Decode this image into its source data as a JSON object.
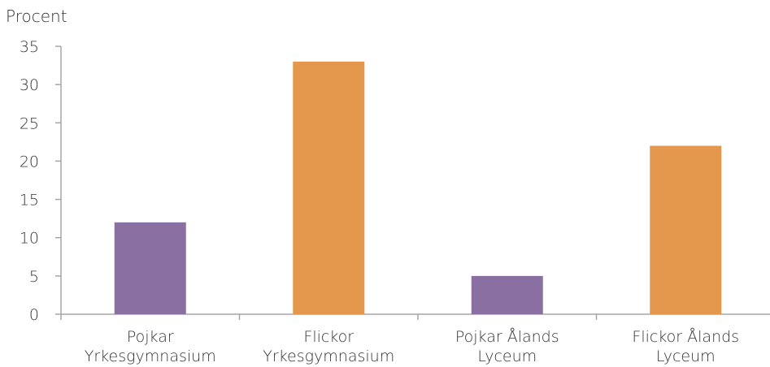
{
  "chart_data": {
    "type": "bar",
    "ylabel": "Procent",
    "categories": [
      [
        "Pojkar",
        "Yrkesgymnasium"
      ],
      [
        "Flickor",
        "Yrkesgymnasium"
      ],
      [
        "Pojkar Ålands",
        "Lyceum"
      ],
      [
        "Flickor Ålands",
        "Lyceum"
      ]
    ],
    "values": [
      12,
      33,
      5,
      22
    ],
    "bar_colors": [
      "#8a70a2",
      "#e3984d",
      "#8a70a2",
      "#e3984d"
    ],
    "ylim": [
      0,
      35
    ],
    "yticks": [
      0,
      5,
      10,
      15,
      20,
      25,
      30,
      35
    ],
    "grid": false,
    "legend": "none"
  }
}
